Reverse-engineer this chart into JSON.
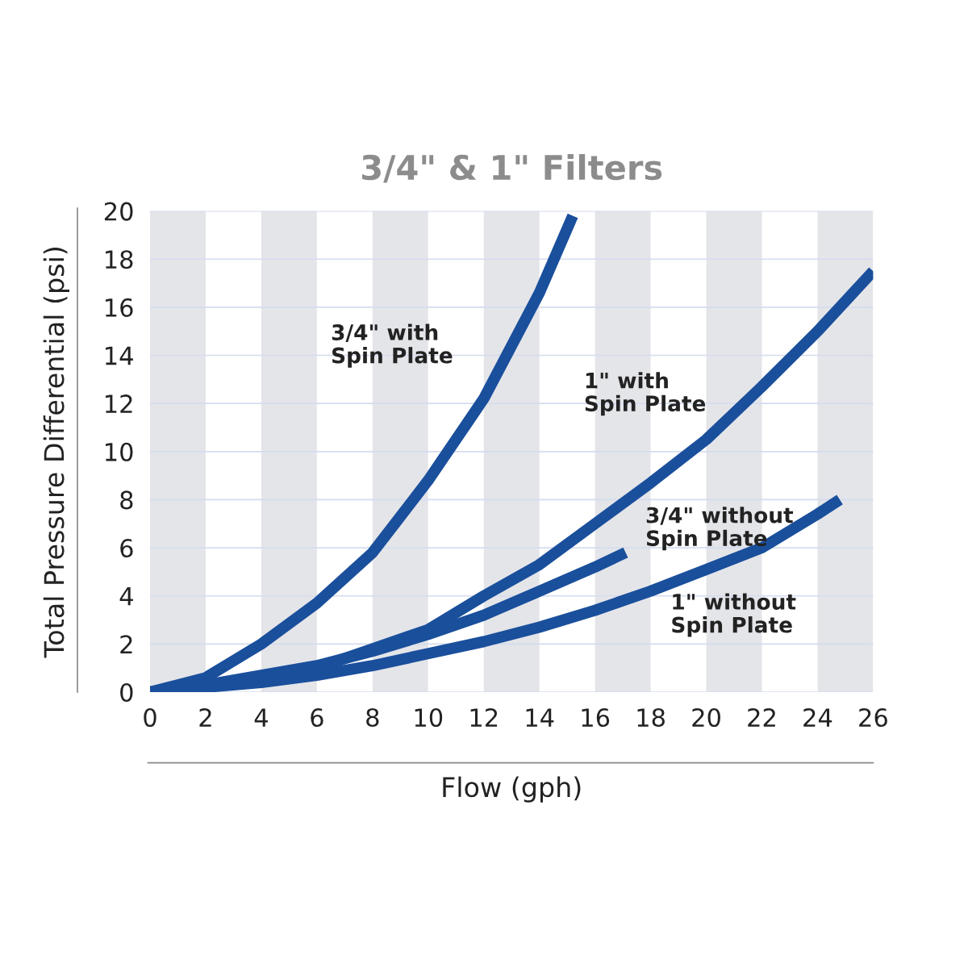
{
  "chart_data": {
    "type": "line",
    "title": "3/4\" & 1\" Filters",
    "xlabel": "Flow (gph)",
    "ylabel": "Total Pressure Differential (psi)",
    "xlim": [
      0,
      26
    ],
    "xticks": [
      0,
      2,
      4,
      6,
      8,
      10,
      12,
      14,
      16,
      18,
      20,
      22,
      24,
      26
    ],
    "ylim": [
      0,
      20
    ],
    "yticks": [
      0,
      2,
      4,
      6,
      8,
      10,
      12,
      14,
      16,
      18,
      20
    ],
    "grid": "y",
    "legend": false,
    "marker": "none",
    "line_style": "solid",
    "bands": [
      {
        "axis": "x",
        "from": 0,
        "to": 2,
        "color": "#e4e5e9"
      },
      {
        "axis": "x",
        "from": 4,
        "to": 6,
        "color": "#e4e5e9"
      },
      {
        "axis": "x",
        "from": 8,
        "to": 10,
        "color": "#e4e5e9"
      },
      {
        "axis": "x",
        "from": 12,
        "to": 14,
        "color": "#e4e5e9"
      },
      {
        "axis": "x",
        "from": 16,
        "to": 18,
        "color": "#e4e5e9"
      },
      {
        "axis": "x",
        "from": 20,
        "to": 22,
        "color": "#e4e5e9"
      },
      {
        "axis": "x",
        "from": 24,
        "to": 26,
        "color": "#e4e5e9"
      }
    ],
    "series": [
      {
        "name": "3/4\" with\nSpin Plate",
        "color": "#1a4f9c",
        "x": [
          0,
          2,
          4,
          6,
          8,
          10,
          12,
          14,
          15.2
        ],
        "values": [
          0,
          0.6,
          2.0,
          3.7,
          5.8,
          8.8,
          12.2,
          16.6,
          19.8
        ]
      },
      {
        "name": "1\" with\nSpin Plate",
        "color": "#1a4f9c",
        "x": [
          0,
          2,
          4,
          6,
          8,
          10,
          12,
          14,
          16,
          18,
          20,
          22,
          24,
          26
        ],
        "values": [
          0,
          0.3,
          0.6,
          1.0,
          1.8,
          2.6,
          4.0,
          5.3,
          7.0,
          8.7,
          10.5,
          12.7,
          15.0,
          17.5
        ]
      },
      {
        "name": "3/4\" without\nSpin Plate",
        "color": "#1a4f9c",
        "x": [
          0,
          2,
          4,
          6,
          8,
          10,
          12,
          14,
          16,
          17.1
        ],
        "values": [
          0,
          0.3,
          0.7,
          1.1,
          1.7,
          2.4,
          3.2,
          4.2,
          5.2,
          5.8
        ]
      },
      {
        "name": "1\" without\nSpin Plate",
        "color": "#1a4f9c",
        "x": [
          0,
          2,
          4,
          6,
          8,
          10,
          12,
          14,
          16,
          18,
          20,
          22,
          24,
          24.8
        ],
        "values": [
          0,
          0.2,
          0.4,
          0.7,
          1.1,
          1.6,
          2.1,
          2.7,
          3.4,
          4.2,
          5.1,
          6.0,
          7.4,
          8.0
        ]
      }
    ]
  }
}
